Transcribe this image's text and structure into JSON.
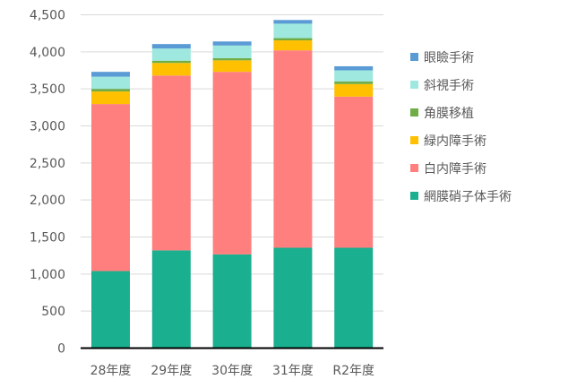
{
  "chart_data": {
    "type": "bar",
    "stacked": true,
    "title": "",
    "xlabel": "",
    "ylabel": "",
    "ylim": [
      0,
      4500
    ],
    "yticks": [
      0,
      500,
      1000,
      1500,
      2000,
      2500,
      3000,
      3500,
      4000,
      4500
    ],
    "ytick_labels": [
      "0",
      "500",
      "1,000",
      "1,500",
      "2,000",
      "2,500",
      "3,000",
      "3,500",
      "4,000",
      "4,500"
    ],
    "grid": true,
    "legend_position": "right",
    "categories": [
      "28年度",
      "29年度",
      "30年度",
      "31年度",
      "R2年度"
    ],
    "series": [
      {
        "name": "網膜硝子体手術",
        "color": "#1AAF8F",
        "values": [
          1040,
          1320,
          1265,
          1355,
          1355
        ]
      },
      {
        "name": "白内障手術",
        "color": "#FF7F7F",
        "values": [
          2255,
          2360,
          2465,
          2665,
          2040
        ]
      },
      {
        "name": "緑内障手術",
        "color": "#FFC000",
        "values": [
          170,
          170,
          155,
          135,
          170
        ]
      },
      {
        "name": "角膜移植",
        "color": "#70AD47",
        "values": [
          35,
          30,
          30,
          30,
          35
        ]
      },
      {
        "name": "斜視手術",
        "color": "#9EE8DF",
        "values": [
          165,
          165,
          170,
          195,
          150
        ]
      },
      {
        "name": "眼瞼手術",
        "color": "#5B9BD5",
        "values": [
          65,
          60,
          55,
          50,
          55
        ]
      }
    ],
    "legend_order": [
      "眼瞼手術",
      "斜視手術",
      "角膜移植",
      "緑内障手術",
      "白内障手術",
      "網膜硝子体手術"
    ]
  }
}
